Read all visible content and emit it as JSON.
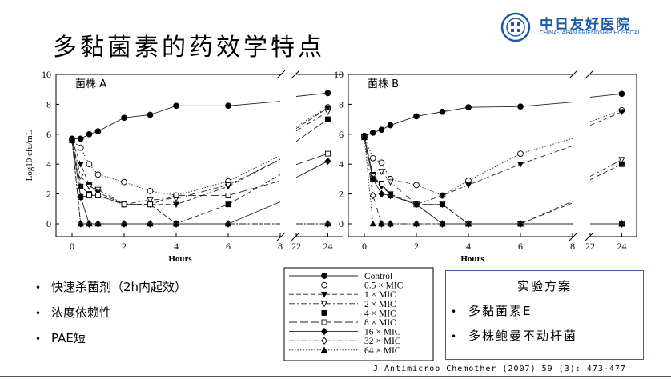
{
  "title": "多黏菌素的药效学特点",
  "logo": {
    "cn": "中日友好医院",
    "en": "CHINA-JAPAN FRIENDSHIP HOSPITAL"
  },
  "chart_data": [
    {
      "type": "line",
      "panel_label": "菌株 A",
      "xlabel": "Hours",
      "ylabel": "Log10 cfu/mL",
      "ylim": [
        0,
        10
      ],
      "x_ticks": [
        "0",
        "2",
        "4",
        "6",
        "8",
        "22",
        "24"
      ],
      "y_ticks": [
        "0",
        "2",
        "4",
        "6",
        "8",
        "10"
      ],
      "x_axis_break": [
        8,
        22
      ],
      "series": [
        {
          "name": "Control",
          "x": [
            0,
            0.33,
            0.66,
            1,
            2,
            3,
            4,
            6,
            24
          ],
          "y": [
            5.7,
            5.7,
            6.0,
            6.2,
            7.1,
            7.3,
            7.9,
            7.9,
            8.75
          ]
        },
        {
          "name": "0.5 × MIC",
          "x": [
            0,
            0.33,
            0.66,
            1,
            2,
            3,
            4,
            6,
            24
          ],
          "y": [
            5.6,
            5.1,
            4.0,
            3.3,
            2.8,
            2.2,
            1.9,
            2.85,
            7.8
          ]
        },
        {
          "name": "1 × MIC",
          "x": [
            0,
            0.33,
            0.66,
            1,
            2,
            3,
            4,
            6,
            24
          ],
          "y": [
            5.6,
            4.0,
            2.6,
            2.1,
            1.3,
            1.3,
            1.3,
            2.5,
            7.75
          ]
        },
        {
          "name": "2 × MIC",
          "x": [
            0,
            0.33,
            0.66,
            1,
            2,
            3,
            4,
            6,
            24
          ],
          "y": [
            5.6,
            3.2,
            2.5,
            2.3,
            1.3,
            1.6,
            1.7,
            2.6,
            7.5
          ]
        },
        {
          "name": "4 × MIC",
          "x": [
            0,
            0.33,
            0.66,
            1,
            2,
            3,
            4,
            6,
            24
          ],
          "y": [
            5.6,
            2.5,
            2.0,
            1.9,
            1.3,
            1.3,
            0,
            1.3,
            7.0
          ]
        },
        {
          "name": "8 × MIC",
          "x": [
            0,
            0.33,
            0.66,
            1,
            2,
            3,
            4,
            6,
            24
          ],
          "y": [
            5.6,
            1.8,
            1.9,
            1.9,
            1.3,
            1.3,
            1.9,
            1.9,
            4.7
          ]
        },
        {
          "name": "16 × MIC",
          "x": [
            0,
            0.33,
            0.66,
            1,
            2,
            3,
            4,
            6,
            24
          ],
          "y": [
            5.6,
            1.8,
            0,
            0,
            0,
            0,
            0,
            0,
            4.2
          ]
        },
        {
          "name": "32 × MIC",
          "x": [
            0,
            0.33,
            0.66,
            1,
            2,
            3,
            4,
            6,
            24
          ],
          "y": [
            5.6,
            0,
            0,
            0,
            0,
            0,
            0,
            0,
            0
          ]
        },
        {
          "name": "64 × MIC",
          "x": [
            0,
            0.33,
            0.66,
            1,
            2,
            3,
            4,
            6,
            24
          ],
          "y": [
            5.6,
            0,
            0,
            0,
            0,
            0,
            0,
            0,
            0
          ]
        }
      ]
    },
    {
      "type": "line",
      "panel_label": "菌株 B",
      "xlabel": "Hours",
      "ylabel": "",
      "ylim": [
        0,
        10
      ],
      "x_ticks": [
        "0",
        "2",
        "4",
        "6",
        "8",
        "22",
        "24"
      ],
      "y_ticks": [
        "0",
        "2",
        "4",
        "6",
        "8",
        "10"
      ],
      "x_axis_break": [
        8,
        22
      ],
      "series": [
        {
          "name": "Control",
          "x": [
            0,
            0.33,
            0.66,
            1,
            2,
            3,
            4,
            6,
            24
          ],
          "y": [
            5.9,
            6.1,
            6.3,
            6.6,
            7.2,
            7.5,
            7.8,
            7.85,
            8.7
          ]
        },
        {
          "name": "0.5 × MIC",
          "x": [
            0,
            0.33,
            0.66,
            1,
            2,
            3,
            4,
            6,
            24
          ],
          "y": [
            5.8,
            4.4,
            4.1,
            3.0,
            2.6,
            1.9,
            2.9,
            4.7,
            7.6
          ]
        },
        {
          "name": "1 × MIC",
          "x": [
            0,
            0.33,
            0.66,
            1,
            2,
            3,
            4,
            6,
            24
          ],
          "y": [
            5.8,
            3.3,
            2.5,
            2.0,
            1.3,
            1.9,
            2.6,
            4.0,
            7.5
          ]
        },
        {
          "name": "2 × MIC",
          "x": [
            0,
            0.33,
            0.66,
            1,
            2,
            3,
            4,
            6,
            24
          ],
          "y": [
            5.8,
            3.2,
            3.5,
            2.8,
            1.3,
            1.3,
            0,
            0,
            4.3
          ]
        },
        {
          "name": "4 × MIC",
          "x": [
            0,
            0.33,
            0.66,
            1,
            2,
            3,
            4,
            6,
            24
          ],
          "y": [
            5.8,
            3.0,
            2.7,
            1.9,
            1.3,
            1.3,
            0,
            0,
            4.0
          ]
        },
        {
          "name": "8 × MIC",
          "x": [
            0,
            0.33,
            0.66,
            1,
            2,
            3,
            4,
            6,
            24
          ],
          "y": [
            5.8,
            3.0,
            2.7,
            1.9,
            1.3,
            0,
            0,
            0,
            0
          ]
        },
        {
          "name": "16 × MIC",
          "x": [
            0,
            0.33,
            0.66,
            1,
            2,
            3,
            4,
            6,
            24
          ],
          "y": [
            5.8,
            3.0,
            2.0,
            1.9,
            1.3,
            0,
            0,
            0,
            0
          ]
        },
        {
          "name": "32 × MIC",
          "x": [
            0,
            0.33,
            0.66,
            1,
            2,
            3,
            4,
            6,
            24
          ],
          "y": [
            5.8,
            1.9,
            0,
            0,
            0,
            0,
            0,
            0,
            0
          ]
        },
        {
          "name": "64 × MIC",
          "x": [
            0,
            0.33,
            0.66,
            1,
            2,
            3,
            4,
            6,
            24
          ],
          "y": [
            5.8,
            0,
            0,
            0,
            0,
            0,
            0,
            0,
            0
          ]
        }
      ]
    }
  ],
  "legend": {
    "placement": "bottom-center",
    "entries": [
      {
        "label": "Control",
        "marker": "circle-filled",
        "dash": "solid"
      },
      {
        "label": "0.5 × MIC",
        "marker": "circle-open",
        "dash": "dotted"
      },
      {
        "label": "1 × MIC",
        "marker": "triangle-down-filled",
        "dash": "dashed"
      },
      {
        "label": "2 × MIC",
        "marker": "triangle-down-open",
        "dash": "dashdot"
      },
      {
        "label": "4 × MIC",
        "marker": "square-filled",
        "dash": "dashed"
      },
      {
        "label": "8 × MIC",
        "marker": "square-open",
        "dash": "longdash"
      },
      {
        "label": "16 × MIC",
        "marker": "diamond-filled",
        "dash": "solid"
      },
      {
        "label": "32 × MIC",
        "marker": "diamond-open",
        "dash": "dashdot"
      },
      {
        "label": "64 × MIC",
        "marker": "triangle-up-filled",
        "dash": "dotted"
      }
    ]
  },
  "bullets": [
    "快速杀菌剂（2h内起效）",
    "浓度依赖性",
    "PAE短"
  ],
  "protocol": {
    "title": "实验方案",
    "items": [
      "多黏菌素E",
      "多株鲍曼不动杆菌"
    ]
  },
  "citation": "J Antimicrob Chemother (2007) 59 (3): 473-477",
  "colors": {
    "accent": "#1a5aa8",
    "box_border": "#3a5f9a"
  }
}
